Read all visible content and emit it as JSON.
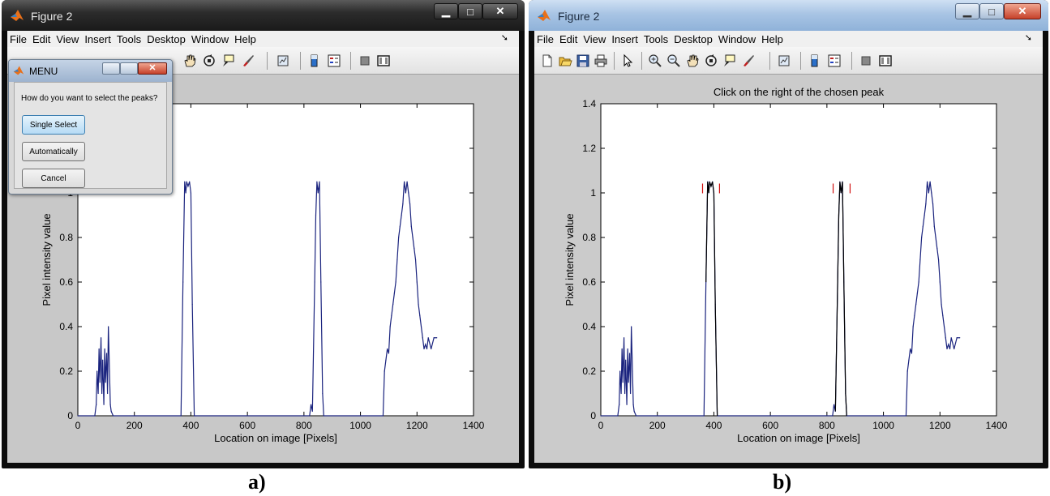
{
  "window_a": {
    "title": "Figure 2",
    "menu": [
      "File",
      "Edit",
      "View",
      "Insert",
      "Tools",
      "Desktop",
      "Window",
      "Help"
    ],
    "caption": "a)",
    "plot": {
      "ylabel": "Pixel intensity value",
      "xlabel": "Location on image [Pixels]"
    }
  },
  "window_b": {
    "title": "Figure 2",
    "menu": [
      "File",
      "Edit",
      "View",
      "Insert",
      "Tools",
      "Desktop",
      "Window",
      "Help"
    ],
    "caption": "b)",
    "plot": {
      "title": "Click on the right of the chosen peak",
      "ylabel": "Pixel intensity value",
      "xlabel": "Location on image [Pixels]"
    }
  },
  "menu_dialog": {
    "title": "MENU",
    "question": "How do you want to select the peaks?",
    "buttons": [
      "Single Select",
      "Automatically",
      "Cancel"
    ],
    "selected_button": "Single Select"
  },
  "toolbar_icons": [
    "new-figure-icon",
    "open-file-icon",
    "save-icon",
    "print-icon",
    "pointer-icon",
    "zoom-in-icon",
    "zoom-out-icon",
    "pan-icon",
    "rotate-3d-icon",
    "data-cursor-icon",
    "brush-icon",
    "link-plot-icon",
    "colorbar-icon",
    "legend-icon",
    "hide-plot-tools-icon",
    "show-plot-tools-icon"
  ],
  "chart_data": [
    {
      "type": "line",
      "title": "",
      "xlabel": "Location on image [Pixels]",
      "ylabel": "Pixel intensity value",
      "xlim": [
        0,
        1400
      ],
      "ylim": [
        0,
        1.4
      ],
      "xticks": [
        0,
        200,
        400,
        600,
        800,
        1000,
        1200,
        1400
      ],
      "yticks": [
        0,
        0.2,
        0.4,
        0.6,
        0.8,
        1,
        1.2,
        1.4
      ],
      "x": [
        0,
        60,
        65,
        68,
        72,
        75,
        78,
        82,
        85,
        88,
        92,
        95,
        98,
        102,
        105,
        108,
        112,
        115,
        118,
        125,
        365,
        372,
        378,
        382,
        385,
        390,
        395,
        400,
        405,
        412,
        820,
        825,
        830,
        838,
        842,
        846,
        850,
        855,
        860,
        866,
        870,
        1080,
        1085,
        1090,
        1095,
        1100,
        1105,
        1110,
        1115,
        1120,
        1125,
        1130,
        1135,
        1140,
        1145,
        1150,
        1155,
        1160,
        1165,
        1170,
        1175,
        1180,
        1185,
        1190,
        1195,
        1200,
        1205,
        1210,
        1215,
        1220,
        1225,
        1230,
        1235,
        1240,
        1250,
        1260,
        1270
      ],
      "y": [
        0,
        0,
        0.05,
        0.2,
        0.1,
        0.3,
        0.15,
        0.35,
        0.1,
        0.25,
        0.05,
        0.3,
        0.15,
        0.28,
        0.1,
        0.4,
        0.2,
        0.05,
        0.02,
        0,
        0,
        0.6,
        1.05,
        1.0,
        1.05,
        1.03,
        1.05,
        1.0,
        0.5,
        0,
        0,
        0.05,
        0.02,
        0.6,
        0.9,
        1.05,
        1.0,
        1.05,
        0.6,
        0.1,
        0,
        0,
        0.2,
        0.25,
        0.3,
        0.28,
        0.4,
        0.45,
        0.5,
        0.55,
        0.6,
        0.7,
        0.8,
        0.85,
        0.9,
        0.95,
        1.05,
        1.0,
        1.05,
        1.0,
        0.95,
        0.85,
        0.8,
        0.75,
        0.7,
        0.6,
        0.5,
        0.45,
        0.4,
        0.35,
        0.3,
        0.32,
        0.3,
        0.35,
        0.3,
        0.35,
        0.35
      ]
    },
    {
      "type": "line",
      "title": "Click on the right of the chosen peak",
      "xlabel": "Location on image [Pixels]",
      "ylabel": "Pixel intensity value",
      "xlim": [
        0,
        1400
      ],
      "ylim": [
        0,
        1.4
      ],
      "xticks": [
        0,
        200,
        400,
        600,
        800,
        1000,
        1200,
        1400
      ],
      "yticks": [
        0,
        0.2,
        0.4,
        0.6,
        0.8,
        1,
        1.2,
        1.4
      ],
      "x": [
        0,
        60,
        65,
        68,
        72,
        75,
        78,
        82,
        85,
        88,
        92,
        95,
        98,
        102,
        105,
        108,
        112,
        115,
        118,
        125,
        365,
        372,
        378,
        382,
        385,
        390,
        395,
        400,
        405,
        412,
        820,
        825,
        830,
        838,
        842,
        846,
        850,
        855,
        860,
        866,
        870,
        1080,
        1085,
        1090,
        1095,
        1100,
        1105,
        1110,
        1115,
        1120,
        1125,
        1130,
        1135,
        1140,
        1145,
        1150,
        1155,
        1160,
        1165,
        1170,
        1175,
        1180,
        1185,
        1190,
        1195,
        1200,
        1205,
        1210,
        1215,
        1220,
        1225,
        1230,
        1235,
        1240,
        1250,
        1260,
        1270
      ],
      "y": [
        0,
        0,
        0.05,
        0.2,
        0.1,
        0.3,
        0.15,
        0.35,
        0.1,
        0.25,
        0.05,
        0.3,
        0.15,
        0.28,
        0.1,
        0.4,
        0.2,
        0.05,
        0.02,
        0,
        0,
        0.6,
        1.05,
        1.0,
        1.05,
        1.03,
        1.05,
        1.0,
        0.5,
        0,
        0,
        0.05,
        0.02,
        0.6,
        0.9,
        1.05,
        1.0,
        1.05,
        0.6,
        0.1,
        0,
        0,
        0.2,
        0.25,
        0.3,
        0.28,
        0.4,
        0.45,
        0.5,
        0.55,
        0.6,
        0.7,
        0.8,
        0.85,
        0.9,
        0.95,
        1.05,
        1.0,
        1.05,
        1.0,
        0.95,
        0.85,
        0.8,
        0.75,
        0.7,
        0.6,
        0.5,
        0.45,
        0.4,
        0.35,
        0.3,
        0.32,
        0.3,
        0.35,
        0.3,
        0.35,
        0.35
      ],
      "selected_peaks": [
        [
          378,
          405
        ],
        [
          838,
          866
        ]
      ],
      "peak_markers_x": [
        360,
        420,
        822,
        882
      ],
      "peak_marker_y": 1.02
    }
  ],
  "colors": {
    "series": "#1a237e",
    "selected_peak": "#000000",
    "marker": "#d01010",
    "axes_bg": "#ffffff",
    "figure_bg": "#c8c8c8"
  }
}
